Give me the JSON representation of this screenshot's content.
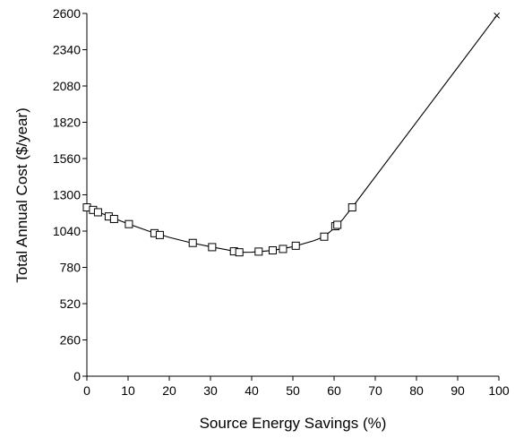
{
  "chart_data": {
    "type": "scatter",
    "xlabel": "Source Energy Savings (%)",
    "ylabel": "Total Annual Cost ($/year)",
    "xlim": [
      0,
      100
    ],
    "ylim": [
      0,
      2600
    ],
    "xticks": [
      0,
      10,
      20,
      30,
      40,
      50,
      60,
      70,
      80,
      90,
      100
    ],
    "yticks": [
      0,
      260,
      520,
      780,
      1040,
      1300,
      1560,
      1820,
      2080,
      2340,
      2600
    ],
    "grid": false,
    "legend": "none",
    "series": [
      {
        "marker": "square",
        "points": [
          [
            0.0,
            1210
          ],
          [
            1.5,
            1192
          ],
          [
            2.7,
            1175
          ],
          [
            5.3,
            1145
          ],
          [
            6.6,
            1127
          ],
          [
            10.2,
            1090
          ],
          [
            16.4,
            1025
          ],
          [
            17.7,
            1012
          ],
          [
            25.7,
            955
          ],
          [
            30.4,
            925
          ],
          [
            35.7,
            895
          ],
          [
            37.0,
            888
          ],
          [
            41.7,
            893
          ],
          [
            45.1,
            902
          ],
          [
            47.6,
            912
          ],
          [
            50.7,
            935
          ],
          [
            57.6,
            1000
          ],
          [
            60.3,
            1075
          ],
          [
            60.8,
            1085
          ],
          [
            64.4,
            1210
          ]
        ]
      },
      {
        "marker": "cross",
        "points": [
          [
            99.5,
            2585
          ]
        ]
      }
    ],
    "curve": [
      [
        0,
        1210
      ],
      [
        5,
        1150
      ],
      [
        10,
        1092
      ],
      [
        15,
        1040
      ],
      [
        20,
        995
      ],
      [
        25,
        958
      ],
      [
        30,
        928
      ],
      [
        35,
        900
      ],
      [
        37,
        888
      ],
      [
        40,
        889
      ],
      [
        45,
        901
      ],
      [
        50,
        928
      ],
      [
        55,
        970
      ],
      [
        57.6,
        1000
      ],
      [
        60,
        1060
      ],
      [
        62,
        1120
      ],
      [
        64.4,
        1210
      ],
      [
        99.5,
        2585
      ]
    ],
    "colors": {
      "line": "#000000",
      "marker": "#000000",
      "background": "#ffffff"
    }
  }
}
